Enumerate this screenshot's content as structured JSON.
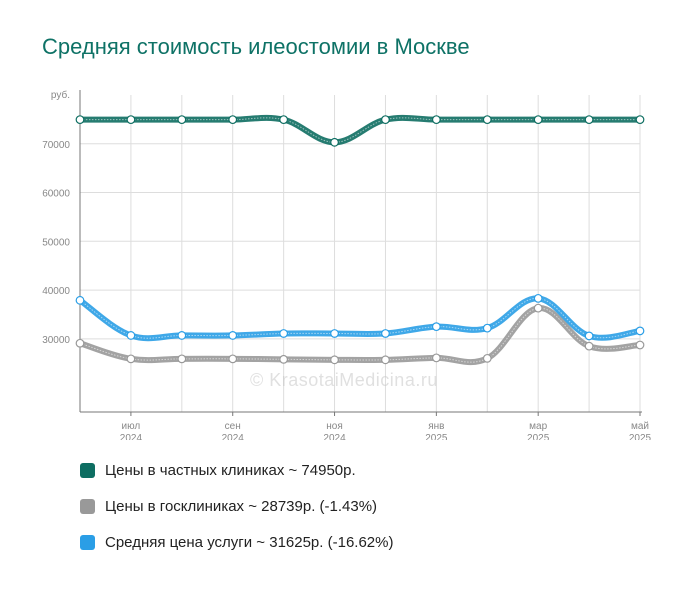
{
  "title": "Средняя стоимость илеостомии в Москве",
  "watermark": "© KrasotaiMedicina.ru",
  "chart_data": {
    "type": "line",
    "y_unit": "руб.",
    "ylim": [
      15000,
      80000
    ],
    "yticks": [
      30000,
      40000,
      50000,
      60000,
      70000
    ],
    "grid": true,
    "x_labels": [
      {
        "month": "июл",
        "year": "2024",
        "index": 1
      },
      {
        "month": "сен",
        "year": "2024",
        "index": 3
      },
      {
        "month": "ноя",
        "year": "2024",
        "index": 5
      },
      {
        "month": "янв",
        "year": "2025",
        "index": 7
      },
      {
        "month": "мар",
        "year": "2025",
        "index": 9
      },
      {
        "month": "май",
        "year": "2025",
        "index": 11
      }
    ],
    "series": [
      {
        "name": "Цены в частных клиниках ~ 74950р.",
        "color": "#0e6e62",
        "values": [
          74950,
          74950,
          74950,
          74950,
          74950,
          70300,
          74950,
          74950,
          74950,
          74950,
          74950,
          74950
        ]
      },
      {
        "name": "Цены в госклиниках ~ 28739р. (-1.43%)",
        "color": "#999999",
        "values": [
          29100,
          25900,
          25900,
          25900,
          25800,
          25700,
          25700,
          26100,
          26000,
          36300,
          28500,
          28739
        ]
      },
      {
        "name": "Средняя цена услуги ~ 31625р. (-16.62%)",
        "color": "#2a9ee6",
        "values": [
          37900,
          30700,
          30700,
          30700,
          31100,
          31100,
          31100,
          32500,
          32200,
          38300,
          30600,
          31625
        ]
      }
    ]
  }
}
